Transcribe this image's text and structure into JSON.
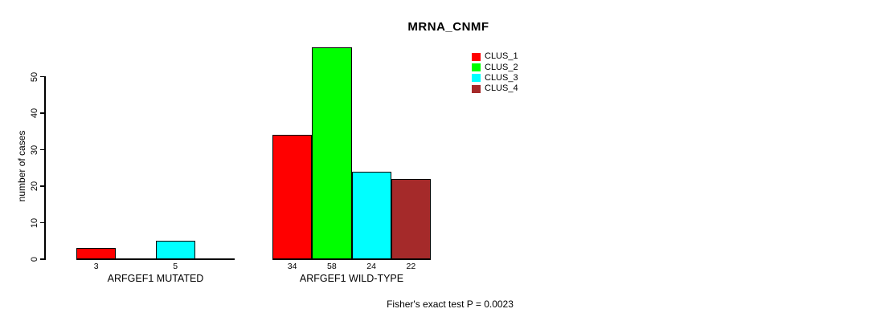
{
  "chart_data": {
    "type": "bar",
    "title": "MRNA_CNMF",
    "xlabel": "",
    "ylabel": "number of cases",
    "yticks": [
      0,
      10,
      20,
      30,
      40,
      50
    ],
    "ylim": [
      0,
      59
    ],
    "grid": false,
    "legend_position": "top-right",
    "legend": [
      {
        "label": "CLUS_1",
        "color": "#FF0000"
      },
      {
        "label": "CLUS_2",
        "color": "#00FF00"
      },
      {
        "label": "CLUS_3",
        "color": "#00FFFF"
      },
      {
        "label": "CLUS_4",
        "color": "#A52A2A"
      }
    ],
    "categories": [
      "ARFGEF1 MUTATED",
      "ARFGEF1 WILD-TYPE"
    ],
    "series": [
      {
        "name": "CLUS_1",
        "values": [
          3,
          34
        ]
      },
      {
        "name": "CLUS_2",
        "values": [
          0,
          58
        ]
      },
      {
        "name": "CLUS_3",
        "values": [
          5,
          24
        ]
      },
      {
        "name": "CLUS_4",
        "values": [
          0,
          22
        ]
      }
    ],
    "groups": [
      {
        "label": "ARFGEF1 MUTATED",
        "values": [
          3,
          0,
          5,
          0
        ],
        "shown_value_labels": [
          "3",
          "5"
        ]
      },
      {
        "label": "ARFGEF1 WILD-TYPE",
        "values": [
          34,
          58,
          24,
          22
        ],
        "shown_value_labels": [
          "34",
          "58",
          "24",
          "22"
        ]
      }
    ],
    "annotation": "Fisher's exact test P = 0.0023"
  },
  "colors": {
    "background": "#FFFFFF",
    "axis": "#000000",
    "text": "#000000"
  }
}
